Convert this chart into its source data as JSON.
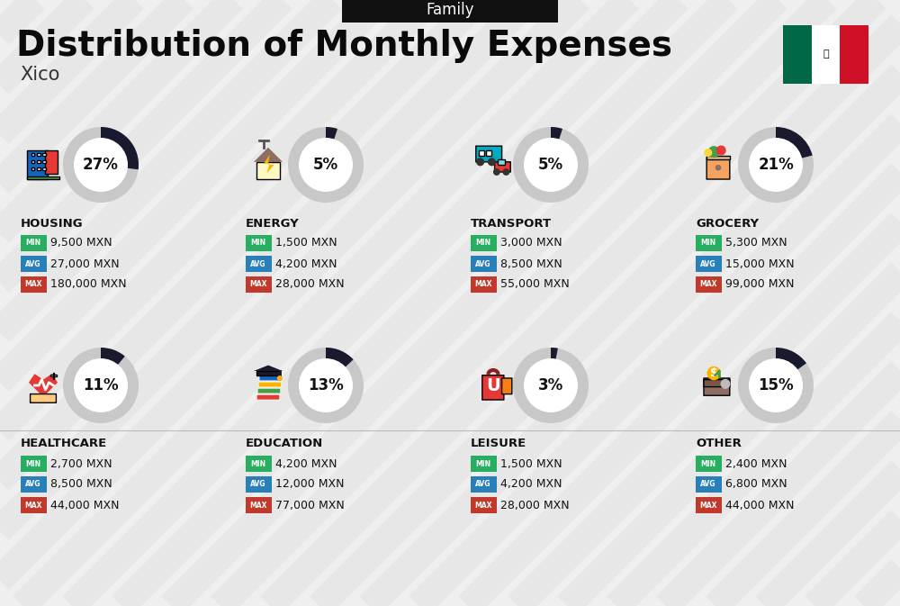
{
  "title": "Distribution of Monthly Expenses",
  "subtitle": "Family",
  "city": "Xico",
  "background_color": "#efefef",
  "categories": [
    {
      "name": "HOUSING",
      "pct": 27,
      "min": "9,500 MXN",
      "avg": "27,000 MXN",
      "max": "180,000 MXN",
      "col": 0,
      "row": 0
    },
    {
      "name": "ENERGY",
      "pct": 5,
      "min": "1,500 MXN",
      "avg": "4,200 MXN",
      "max": "28,000 MXN",
      "col": 1,
      "row": 0
    },
    {
      "name": "TRANSPORT",
      "pct": 5,
      "min": "3,000 MXN",
      "avg": "8,500 MXN",
      "max": "55,000 MXN",
      "col": 2,
      "row": 0
    },
    {
      "name": "GROCERY",
      "pct": 21,
      "min": "5,300 MXN",
      "avg": "15,000 MXN",
      "max": "99,000 MXN",
      "col": 3,
      "row": 0
    },
    {
      "name": "HEALTHCARE",
      "pct": 11,
      "min": "2,700 MXN",
      "avg": "8,500 MXN",
      "max": "44,000 MXN",
      "col": 0,
      "row": 1
    },
    {
      "name": "EDUCATION",
      "pct": 13,
      "min": "4,200 MXN",
      "avg": "12,000 MXN",
      "max": "77,000 MXN",
      "col": 1,
      "row": 1
    },
    {
      "name": "LEISURE",
      "pct": 3,
      "min": "1,500 MXN",
      "avg": "4,200 MXN",
      "max": "28,000 MXN",
      "col": 2,
      "row": 1
    },
    {
      "name": "OTHER",
      "pct": 15,
      "min": "2,400 MXN",
      "avg": "6,800 MXN",
      "max": "44,000 MXN",
      "col": 3,
      "row": 1
    }
  ],
  "min_color": "#27ae60",
  "avg_color": "#2980b9",
  "max_color": "#c0392b",
  "circle_bg": "#c8c8c8",
  "circle_filled": "#1a1a2e",
  "stripe_color": "#e4e4e4",
  "flag_green": "#006847",
  "flag_white": "#ffffff",
  "flag_red": "#ce1126",
  "icon_colors": {
    "HOUSING": [
      "#1565C0",
      "#E53935",
      "#43A047"
    ],
    "ENERGY": [
      "#FFB300",
      "#29B6F6",
      "#8D6E63"
    ],
    "TRANSPORT": [
      "#00ACC1",
      "#E53935",
      "#FDD835"
    ],
    "GROCERY": [
      "#F57F17",
      "#43A047",
      "#EF9A9A"
    ],
    "HEALTHCARE": [
      "#E53935",
      "#EC407A",
      "#29B6F6"
    ],
    "EDUCATION": [
      "#1565C0",
      "#43A047",
      "#FFB300"
    ],
    "LEISURE": [
      "#E53935",
      "#F57F17",
      "#FDD835"
    ],
    "OTHER": [
      "#8D6E63",
      "#FFB300",
      "#43A047"
    ]
  }
}
